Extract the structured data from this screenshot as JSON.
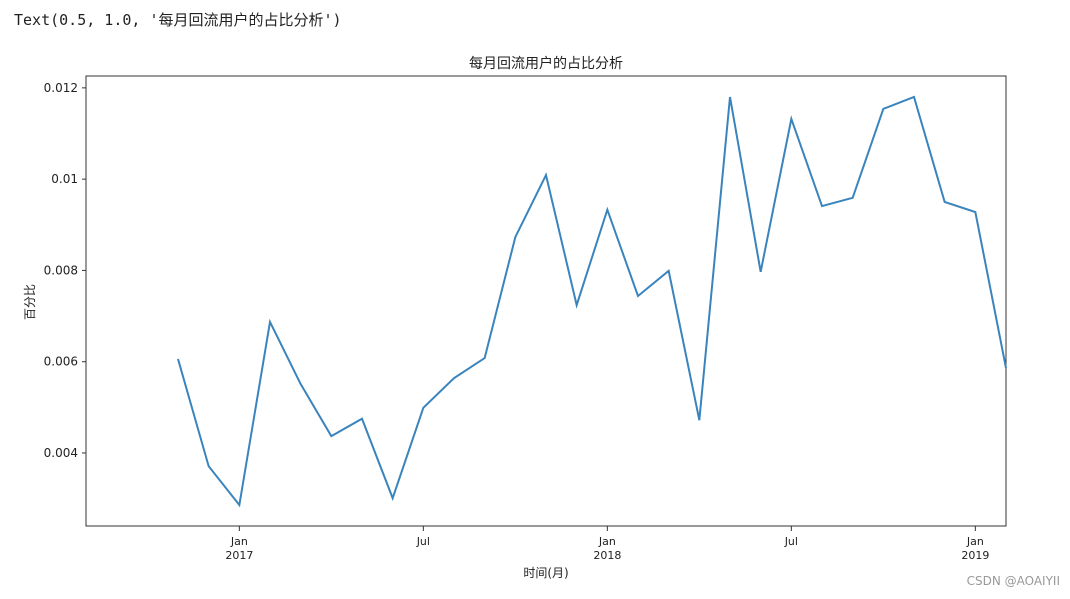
{
  "output_text": "Text(0.5, 1.0, '每月回流用户的占比分析')",
  "watermark": "CSDN @AOAIYII",
  "chart_data": {
    "type": "line",
    "title": "每月回流用户的占比分析",
    "xlabel": "时间(月)",
    "ylabel": "百分比",
    "x": [
      "2016-11",
      "2016-12",
      "2017-01",
      "2017-02",
      "2017-03",
      "2017-04",
      "2017-05",
      "2017-06",
      "2017-07",
      "2017-08",
      "2017-09",
      "2017-10",
      "2017-11",
      "2017-12",
      "2018-01",
      "2018-02",
      "2018-03",
      "2018-04",
      "2018-05",
      "2018-06",
      "2018-07",
      "2018-08",
      "2018-09",
      "2018-10",
      "2018-11",
      "2018-12",
      "2019-01",
      "2019-02"
    ],
    "series": [
      {
        "color": "#3a84bd",
        "values": [
          0.00606,
          0.00371,
          0.00286,
          0.00687,
          0.00551,
          0.00437,
          0.00475,
          0.00301,
          0.00499,
          0.00564,
          0.00608,
          0.00873,
          0.01009,
          0.00724,
          0.00933,
          0.00744,
          0.00799,
          0.00472,
          0.0118,
          0.00797,
          0.01132,
          0.00941,
          0.00959,
          0.01154,
          0.0118,
          0.0095,
          0.00928,
          0.00586
        ]
      }
    ],
    "xlim": [
      "2016-08",
      "2019-02"
    ],
    "xticks": [
      {
        "value": "2017-01",
        "label": "Jan\n2017"
      },
      {
        "value": "2017-07",
        "label": "Jul"
      },
      {
        "value": "2018-01",
        "label": "Jan\n2018"
      },
      {
        "value": "2018-07",
        "label": "Jul"
      },
      {
        "value": "2019-01",
        "label": "Jan\n2019"
      }
    ],
    "ylim": [
      0.0024,
      0.01226
    ],
    "yticks": [
      0.004,
      0.006,
      0.008,
      0.01,
      0.012
    ]
  }
}
